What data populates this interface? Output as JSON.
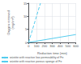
{
  "chart_data": {
    "type": "line",
    "xlabel": "Reduction time (min)",
    "ylabel": "Oxygen removed\n(mg/cm²)",
    "xlim": [
      0,
      600
    ],
    "ylim": [
      0,
      15
    ],
    "xticks": [
      0,
      100,
      200,
      300,
      400,
      500,
      600
    ],
    "yticks": [
      0,
      5,
      10,
      15
    ],
    "series": [
      {
        "name": "wüstite with reactive low permeability of Fe",
        "color": "#55ccee",
        "line_style": "solid",
        "x": [
          0,
          600
        ],
        "values": [
          0,
          3.0
        ]
      },
      {
        "name": "wüstite with reactive porous sponge of Fe",
        "color": "#55ccee",
        "line_style": "dashed",
        "x": [
          0,
          150
        ],
        "values": [
          0,
          15
        ]
      }
    ],
    "grid": true,
    "legend": "bottom"
  }
}
